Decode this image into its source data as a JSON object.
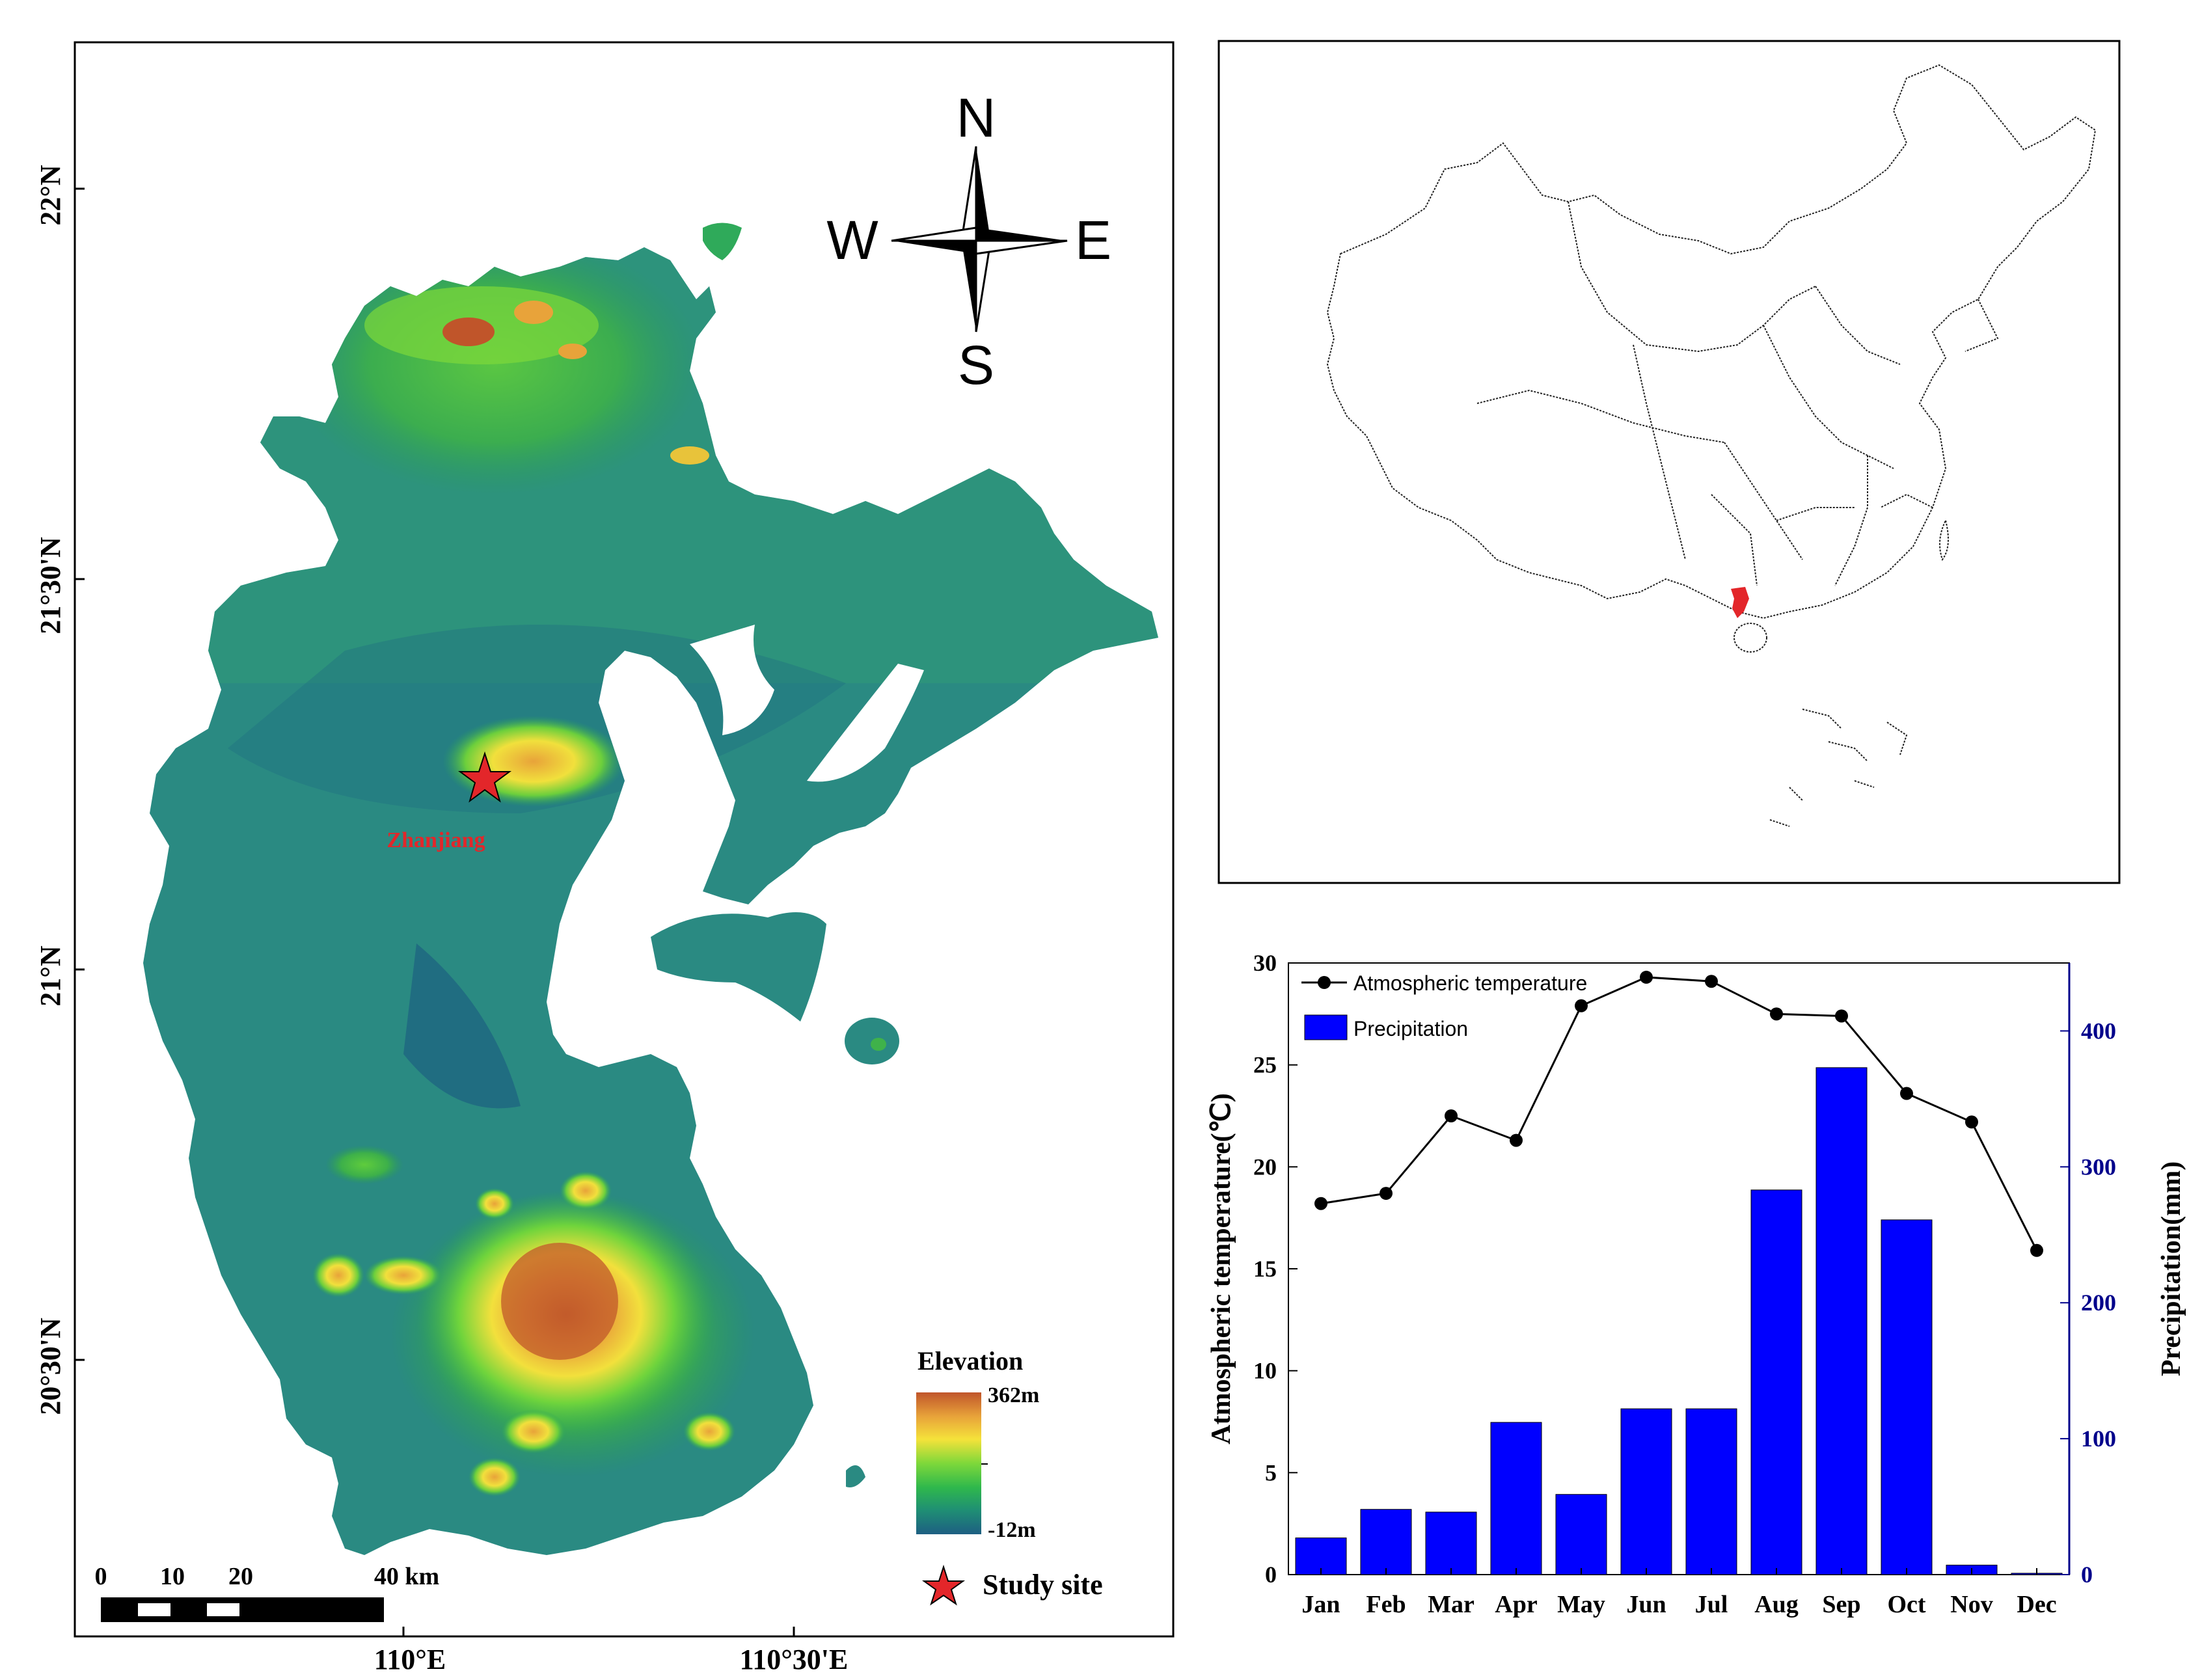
{
  "map": {
    "lat_labels": [
      "22°N",
      "21°30'N",
      "21°N",
      "20°30'N"
    ],
    "lon_labels": [
      "110°E",
      "110°30'E"
    ],
    "compass": {
      "n": "N",
      "s": "S",
      "e": "E",
      "w": "W"
    },
    "city_label": "Zhanjiang",
    "legend": {
      "title": "Elevation",
      "max_label": "362m",
      "min_label": "-12m",
      "colors": [
        "#c0552a",
        "#e8a33a",
        "#f5e23a",
        "#7ed83a",
        "#2fb84c",
        "#1f8f74",
        "#1e5f82"
      ],
      "study_site_label": "Study site",
      "study_site_color": "#e3262a"
    },
    "scale_bar": {
      "labels": [
        "0",
        "10",
        "20",
        "40 km"
      ]
    }
  },
  "inset": {
    "highlight_color": "#e3262a"
  },
  "chart_data": {
    "type": "bar+line",
    "categories": [
      "Jan",
      "Feb",
      "Mar",
      "Apr",
      "May",
      "Jun",
      "Jul",
      "Aug",
      "Sep",
      "Oct",
      "Nov",
      "Dec"
    ],
    "series": [
      {
        "name": "Atmospheric temperature",
        "type": "line",
        "axis": "left",
        "values": [
          18.2,
          18.7,
          22.5,
          21.3,
          27.9,
          29.3,
          29.1,
          27.5,
          27.4,
          23.6,
          22.2,
          15.9
        ]
      },
      {
        "name": "Precipitation",
        "type": "bar",
        "axis": "right",
        "values": [
          27,
          48,
          46,
          112,
          59,
          122,
          122,
          283,
          373,
          261,
          7,
          1
        ]
      }
    ],
    "ylabel_left": "Atmospheric temperature(℃)",
    "ylabel_right": "Precipitation(mm)",
    "ylim_left": [
      0,
      30
    ],
    "ylim_right": [
      0,
      450
    ],
    "yticks_left": [
      "0",
      "5",
      "10",
      "15",
      "20",
      "25",
      "30"
    ],
    "yticks_right": [
      "0",
      "100",
      "200",
      "300",
      "400"
    ],
    "legend_placement": "top-left",
    "bar_color": "#0000ff",
    "line_color": "#000000",
    "right_axis_color": "#00008b"
  }
}
